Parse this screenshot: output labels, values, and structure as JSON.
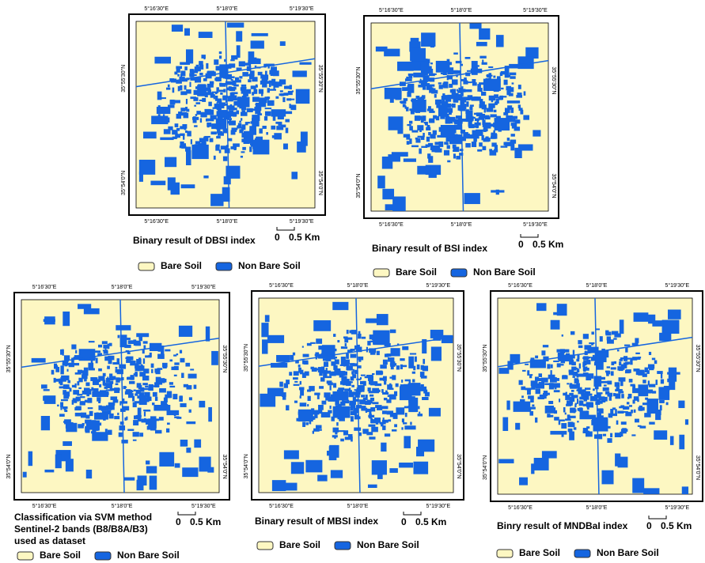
{
  "panels": [
    {
      "top_labels": [
        "5°16'30\"E",
        "5°18'0\"E",
        "5°19'30\"E"
      ],
      "bottom_labels": [
        "5°16'30\"E",
        "5°18'0\"E",
        "5°19'30\"E"
      ],
      "left_labels": [
        "35°55'30\"N",
        "35°54'0\"N"
      ],
      "right_labels": [
        "35°55'30\"N",
        "35°54'0\"N"
      ],
      "caption": "Binary result of  DBSI index",
      "scale": [
        "0",
        "0.5 Km"
      ],
      "legend": [
        "Bare Soil",
        "Non Bare Soil"
      ]
    },
    {
      "top_labels": [
        "5°16'30\"E",
        "5°18'0\"E",
        "5°19'30\"E"
      ],
      "bottom_labels": [
        "5°16'30\"E",
        "5°18'0\"E",
        "5°19'30\"E"
      ],
      "left_labels": [
        "35°55'30\"N",
        "35°54'0\"N"
      ],
      "right_labels": [
        "35°55'30\"N",
        "35°54'0\"N"
      ],
      "caption": "Binary result of BSI index",
      "scale": [
        "0",
        "0.5 Km"
      ],
      "legend": [
        "Bare Soil",
        "Non Bare Soil"
      ]
    },
    {
      "top_labels": [
        "5°16'30\"E",
        "5°18'0\"E",
        "5°19'30\"E"
      ],
      "bottom_labels": [
        "5°16'30\"E",
        "5°18'0\"E",
        "5°19'30\"E"
      ],
      "left_labels": [
        "35°55'30\"N",
        "35°54'0\"N"
      ],
      "right_labels": [
        "35°55'30\"N",
        "35°54'0\"N"
      ],
      "caption": [
        "Classification via SVM method",
        "Sentinel-2 bands (B8/B8A/B3)",
        "used as dataset"
      ],
      "scale": [
        "0",
        "0.5 Km"
      ],
      "legend": [
        "Bare Soil",
        "Non Bare Soil"
      ]
    },
    {
      "top_labels": [
        "5°16'30\"E",
        "5°18'0\"E",
        "5°19'30\"E"
      ],
      "bottom_labels": [
        "5°16'30\"E",
        "5°18'0\"E",
        "5°19'30\"E"
      ],
      "left_labels": [
        "35°55'30\"N",
        "35°54'0\"N"
      ],
      "right_labels": [
        "35°55'30\"N",
        "35°54'0\"N"
      ],
      "caption": "Binary result of MBSI index",
      "scale": [
        "0",
        "0.5 Km"
      ],
      "legend": [
        "Bare Soil",
        "Non Bare Soil"
      ]
    },
    {
      "top_labels": [
        "5°16'30\"E",
        "5°18'0\"E",
        "5°19'30\"E"
      ],
      "bottom_labels": [
        "5°16'30\"E",
        "5°18'0\"E",
        "5°19'30\"E"
      ],
      "left_labels": [
        "35°55'30\"N",
        "35°54'0\"N"
      ],
      "right_labels": [
        "35°55'30\"N",
        "35°54'0\"N"
      ],
      "caption": "Binry  result of  MNDBaI index",
      "scale": [
        "0",
        "0.5 Km"
      ],
      "legend": [
        "Bare Soil",
        "Non Bare Soil"
      ]
    }
  ]
}
